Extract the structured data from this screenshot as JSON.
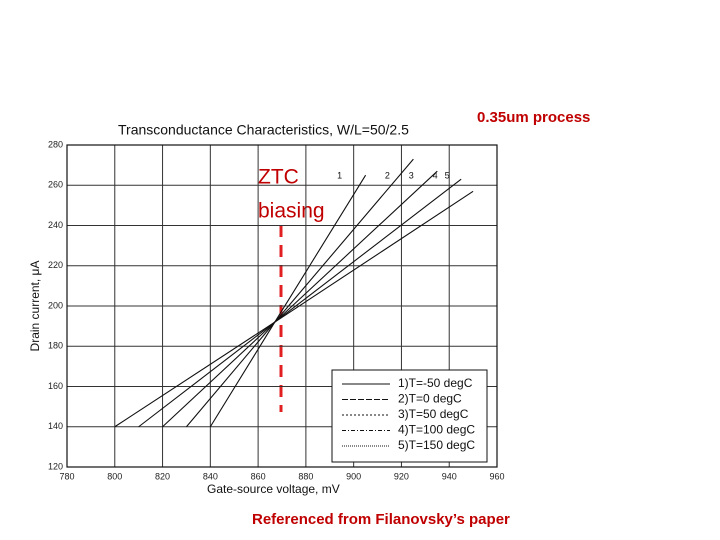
{
  "chart_data": {
    "type": "line",
    "title": "Transconductance Characteristics, W/L=50/2.5",
    "x_label": "Gate-source voltage, mV",
    "y_label": "Drain current, μA",
    "xlim": [
      780,
      960
    ],
    "xticks": [
      780,
      800,
      820,
      840,
      860,
      880,
      900,
      920,
      940,
      960
    ],
    "ylim": [
      120,
      280
    ],
    "yticks": [
      120,
      140,
      160,
      180,
      200,
      220,
      240,
      260,
      280
    ],
    "grid": true,
    "curve_numbers": [
      "1",
      "2",
      "3",
      "4",
      "5"
    ],
    "series": [
      {
        "name": "1)T=-50 degC",
        "color": "#111111",
        "x": [
          840,
          867,
          905
        ],
        "values": [
          140,
          192,
          265
        ]
      },
      {
        "name": "2)T=0 degC",
        "color": "#111111",
        "x": [
          830,
          867,
          925
        ],
        "values": [
          140,
          192,
          273
        ]
      },
      {
        "name": "3)T=50 degC",
        "color": "#111111",
        "x": [
          820,
          867,
          935
        ],
        "values": [
          140,
          192,
          267
        ]
      },
      {
        "name": "4)T=100 degC",
        "color": "#111111",
        "x": [
          810,
          867,
          945
        ],
        "values": [
          140,
          192,
          263
        ]
      },
      {
        "name": "5)T=150 degC",
        "color": "#111111",
        "x": [
          800,
          867,
          950
        ],
        "values": [
          140,
          192,
          257
        ]
      }
    ],
    "annotations": {
      "process": "0.35um process",
      "ztc_line1": "ZTC",
      "ztc_line2": "biasing",
      "reference": "Referenced from Filanovsky’s paper"
    }
  }
}
